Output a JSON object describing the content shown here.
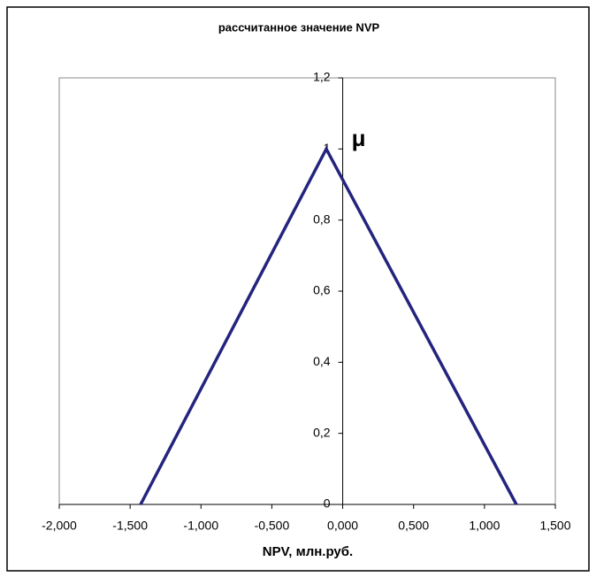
{
  "chart_data": {
    "type": "line",
    "title": "рассчитанное значение NVP",
    "x_label": "NPV, млн.руб.",
    "annotation": "μ",
    "x": [
      -1.426,
      -0.116,
      1.225
    ],
    "values": [
      0,
      1,
      0
    ],
    "color": "#24247f",
    "xlim": [
      -2,
      1.5
    ],
    "xticks": [
      {
        "value": -2,
        "label": "-2,000"
      },
      {
        "value": -1.5,
        "label": "-1,500"
      },
      {
        "value": -1,
        "label": "-1,000"
      },
      {
        "value": -0.5,
        "label": "-0,500"
      },
      {
        "value": 0,
        "label": "0,000"
      },
      {
        "value": 0.5,
        "label": "0,500"
      },
      {
        "value": 1,
        "label": "1,000"
      },
      {
        "value": 1.5,
        "label": "1,500"
      }
    ],
    "ylim": [
      0,
      1.2
    ],
    "yticks": [
      0,
      {
        "value": 0.2,
        "label": "0,2"
      },
      {
        "value": 0.4,
        "label": "0,4"
      },
      {
        "value": 0.6,
        "label": "0,6"
      },
      {
        "value": 0.8,
        "label": "0,8"
      },
      1,
      {
        "value": 1.2,
        "label": "1,2"
      }
    ],
    "grid": false
  }
}
